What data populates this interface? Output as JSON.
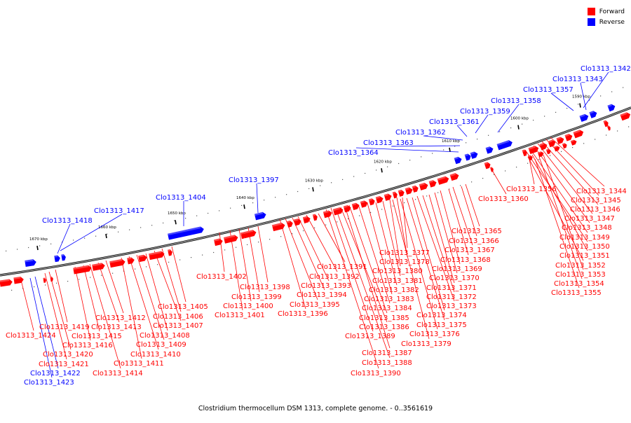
{
  "legend": {
    "items": [
      {
        "label": "Forward",
        "color": "#ff0000"
      },
      {
        "label": "Reverse",
        "color": "#0000ff"
      }
    ]
  },
  "caption": "Clostridium thermocellum DSM 1313, complete genome. - 0..3561619",
  "colors": {
    "forward": "#ff0000",
    "reverse": "#0000ff",
    "backbone": "#808080"
  },
  "ticks": [
    "1670 kbp",
    "1660 kbp",
    "1650 kbp",
    "1640 kbp",
    "1630 kbp",
    "1620 kbp",
    "1610 kbp",
    "1600 kbp",
    "1590 kbp"
  ],
  "gene_labels": [
    {
      "name": "Clo1313_1342",
      "strand": "reverse"
    },
    {
      "name": "Clo1313_1343",
      "strand": "reverse"
    },
    {
      "name": "Clo1313_1357",
      "strand": "reverse"
    },
    {
      "name": "Clo1313_1358",
      "strand": "reverse"
    },
    {
      "name": "Clo1313_1359",
      "strand": "reverse"
    },
    {
      "name": "Clo1313_1361",
      "strand": "reverse"
    },
    {
      "name": "Clo1313_1362",
      "strand": "reverse"
    },
    {
      "name": "Clo1313_1363",
      "strand": "reverse"
    },
    {
      "name": "Clo1313_1364",
      "strand": "reverse"
    },
    {
      "name": "Clo1313_1397",
      "strand": "reverse"
    },
    {
      "name": "Clo1313_1404",
      "strand": "reverse"
    },
    {
      "name": "Clo1313_1417",
      "strand": "reverse"
    },
    {
      "name": "Clo1313_1418",
      "strand": "reverse"
    },
    {
      "name": "Clo1313_1344",
      "strand": "forward"
    },
    {
      "name": "Clo1313_1345",
      "strand": "forward"
    },
    {
      "name": "Clo1313_1346",
      "strand": "forward"
    },
    {
      "name": "Clo1313_1347",
      "strand": "forward"
    },
    {
      "name": "Clo1313_1348",
      "strand": "forward"
    },
    {
      "name": "Clo1313_1349",
      "strand": "forward"
    },
    {
      "name": "Clo1313_1350",
      "strand": "forward"
    },
    {
      "name": "Clo1313_1351",
      "strand": "forward"
    },
    {
      "name": "Clo1313_1352",
      "strand": "forward"
    },
    {
      "name": "Clo1313_1353",
      "strand": "forward"
    },
    {
      "name": "Clo1313_1354",
      "strand": "forward"
    },
    {
      "name": "Clo1313_1355",
      "strand": "forward"
    },
    {
      "name": "Clo1313_1356",
      "strand": "forward"
    },
    {
      "name": "Clo1313_1360",
      "strand": "forward"
    },
    {
      "name": "Clo1313_1365",
      "strand": "forward"
    },
    {
      "name": "Clo1313_1366",
      "strand": "forward"
    },
    {
      "name": "Clo1313_1367",
      "strand": "forward"
    },
    {
      "name": "Clo1313_1368",
      "strand": "forward"
    },
    {
      "name": "Clo1313_1369",
      "strand": "forward"
    },
    {
      "name": "Clo1313_1370",
      "strand": "forward"
    },
    {
      "name": "Clo1313_1371",
      "strand": "forward"
    },
    {
      "name": "Clo1313_1372",
      "strand": "forward"
    },
    {
      "name": "Clo1313_1373",
      "strand": "forward"
    },
    {
      "name": "Clo1313_1374",
      "strand": "forward"
    },
    {
      "name": "Clo1313_1375",
      "strand": "forward"
    },
    {
      "name": "Clo1313_1376",
      "strand": "forward"
    },
    {
      "name": "Clo1313_1379",
      "strand": "forward"
    },
    {
      "name": "Clo1313_1377",
      "strand": "forward"
    },
    {
      "name": "Clo1313_1378",
      "strand": "forward"
    },
    {
      "name": "Clo1313_1380",
      "strand": "forward"
    },
    {
      "name": "Clo1313_1381",
      "strand": "forward"
    },
    {
      "name": "Clo1313_1382",
      "strand": "forward"
    },
    {
      "name": "Clo1313_1383",
      "strand": "forward"
    },
    {
      "name": "Clo1313_1384",
      "strand": "forward"
    },
    {
      "name": "Clo1313_1385",
      "strand": "forward"
    },
    {
      "name": "Clo1313_1386",
      "strand": "forward"
    },
    {
      "name": "Clo1313_1389",
      "strand": "forward"
    },
    {
      "name": "Clo1313_1387",
      "strand": "forward"
    },
    {
      "name": "Clo1313_1388",
      "strand": "forward"
    },
    {
      "name": "Clo1313_1390",
      "strand": "forward"
    },
    {
      "name": "Clo1313_1391",
      "strand": "forward"
    },
    {
      "name": "Clo1313_1392",
      "strand": "forward"
    },
    {
      "name": "Clo1313_1393",
      "strand": "forward"
    },
    {
      "name": "Clo1313_1394",
      "strand": "forward"
    },
    {
      "name": "Clo1313_1395",
      "strand": "forward"
    },
    {
      "name": "Clo1313_1396",
      "strand": "forward"
    },
    {
      "name": "Clo1313_1398",
      "strand": "forward"
    },
    {
      "name": "Clo1313_1399",
      "strand": "forward"
    },
    {
      "name": "Clo1313_1400",
      "strand": "forward"
    },
    {
      "name": "Clo1313_1401",
      "strand": "forward"
    },
    {
      "name": "Clo1313_1402",
      "strand": "forward"
    },
    {
      "name": "Clo1313_1405",
      "strand": "forward"
    },
    {
      "name": "Clo1313_1406",
      "strand": "forward"
    },
    {
      "name": "Clo1313_1407",
      "strand": "forward"
    },
    {
      "name": "Clo1313_1408",
      "strand": "forward"
    },
    {
      "name": "Clo1313_1409",
      "strand": "forward"
    },
    {
      "name": "Clo1313_1410",
      "strand": "forward"
    },
    {
      "name": "Clo1313_1411",
      "strand": "forward"
    },
    {
      "name": "Clo1313_1412",
      "strand": "forward"
    },
    {
      "name": "Clo1313_1413",
      "strand": "forward"
    },
    {
      "name": "Clo1313_1414",
      "strand": "forward"
    },
    {
      "name": "Clo1313_1415",
      "strand": "forward"
    },
    {
      "name": "Clo1313_1416",
      "strand": "forward"
    },
    {
      "name": "Clo1313_1419",
      "strand": "forward"
    },
    {
      "name": "Clo1313_1420",
      "strand": "forward"
    },
    {
      "name": "Clo1313_1421",
      "strand": "forward"
    },
    {
      "name": "Clo1313_1422",
      "strand": "reverse"
    },
    {
      "name": "Clo1313_1423",
      "strand": "reverse"
    },
    {
      "name": "Clo1313_1424",
      "strand": "forward"
    }
  ]
}
